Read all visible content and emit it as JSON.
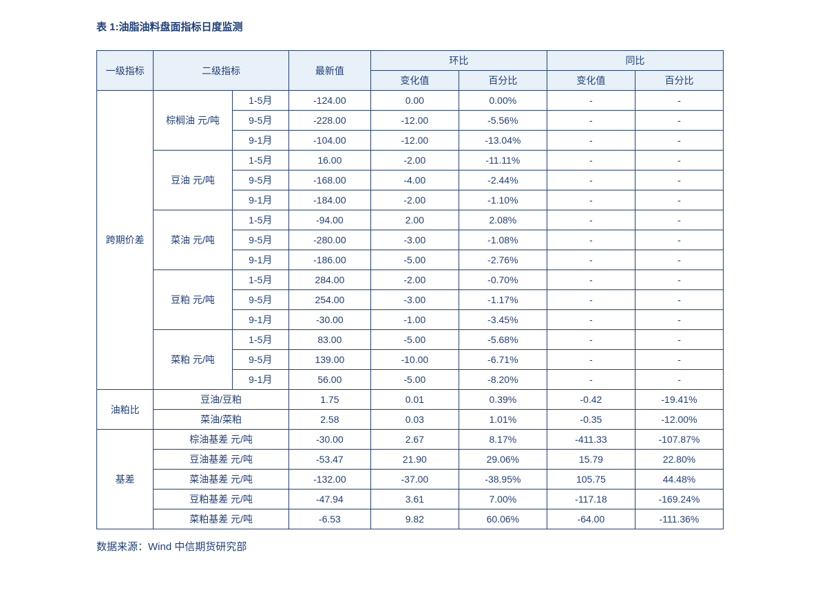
{
  "title": "表 1:油脂油料盘面指标日度监测",
  "source": "数据来源：Wind  中信期货研究部",
  "colors": {
    "primary": "#1f3f7a",
    "header_bg": "#e8f0f8",
    "page_bg": "#ffffff"
  },
  "headers": {
    "l1": "一级指标",
    "l2": "二级指标",
    "latest": "最新值",
    "mom": "环比",
    "yoy": "同比",
    "change_val": "变化值",
    "change_pct": "百分比"
  },
  "groups": [
    {
      "name": "跨期价差",
      "subgroups": [
        {
          "name": "棕榈油 元/吨",
          "rows": [
            {
              "period": "1-5月",
              "latest": "-124.00",
              "mom_v": "0.00",
              "mom_p": "0.00%",
              "yoy_v": "-",
              "yoy_p": "-"
            },
            {
              "period": "9-5月",
              "latest": "-228.00",
              "mom_v": "-12.00",
              "mom_p": "-5.56%",
              "yoy_v": "-",
              "yoy_p": "-"
            },
            {
              "period": "9-1月",
              "latest": "-104.00",
              "mom_v": "-12.00",
              "mom_p": "-13.04%",
              "yoy_v": "-",
              "yoy_p": "-"
            }
          ]
        },
        {
          "name": "豆油  元/吨",
          "rows": [
            {
              "period": "1-5月",
              "latest": "16.00",
              "mom_v": "-2.00",
              "mom_p": "-11.11%",
              "yoy_v": "-",
              "yoy_p": "-"
            },
            {
              "period": "9-5月",
              "latest": "-168.00",
              "mom_v": "-4.00",
              "mom_p": "-2.44%",
              "yoy_v": "-",
              "yoy_p": "-"
            },
            {
              "period": "9-1月",
              "latest": "-184.00",
              "mom_v": "-2.00",
              "mom_p": "-1.10%",
              "yoy_v": "-",
              "yoy_p": "-"
            }
          ]
        },
        {
          "name": "菜油  元/吨",
          "rows": [
            {
              "period": "1-5月",
              "latest": "-94.00",
              "mom_v": "2.00",
              "mom_p": "2.08%",
              "yoy_v": "-",
              "yoy_p": "-"
            },
            {
              "period": "9-5月",
              "latest": "-280.00",
              "mom_v": "-3.00",
              "mom_p": "-1.08%",
              "yoy_v": "-",
              "yoy_p": "-"
            },
            {
              "period": "9-1月",
              "latest": "-186.00",
              "mom_v": "-5.00",
              "mom_p": "-2.76%",
              "yoy_v": "-",
              "yoy_p": "-"
            }
          ]
        },
        {
          "name": "豆粕  元/吨",
          "rows": [
            {
              "period": "1-5月",
              "latest": "284.00",
              "mom_v": "-2.00",
              "mom_p": "-0.70%",
              "yoy_v": "-",
              "yoy_p": "-"
            },
            {
              "period": "9-5月",
              "latest": "254.00",
              "mom_v": "-3.00",
              "mom_p": "-1.17%",
              "yoy_v": "-",
              "yoy_p": "-"
            },
            {
              "period": "9-1月",
              "latest": "-30.00",
              "mom_v": "-1.00",
              "mom_p": "-3.45%",
              "yoy_v": "-",
              "yoy_p": "-"
            }
          ]
        },
        {
          "name": "菜粕  元/吨",
          "rows": [
            {
              "period": "1-5月",
              "latest": "83.00",
              "mom_v": "-5.00",
              "mom_p": "-5.68%",
              "yoy_v": "-",
              "yoy_p": "-"
            },
            {
              "period": "9-5月",
              "latest": "139.00",
              "mom_v": "-10.00",
              "mom_p": "-6.71%",
              "yoy_v": "-",
              "yoy_p": "-"
            },
            {
              "period": "9-1月",
              "latest": "56.00",
              "mom_v": "-5.00",
              "mom_p": "-8.20%",
              "yoy_v": "-",
              "yoy_p": "-"
            }
          ]
        }
      ]
    },
    {
      "name": "油粕比",
      "flat_rows": [
        {
          "name": "豆油/豆粕",
          "latest": "1.75",
          "mom_v": "0.01",
          "mom_p": "0.39%",
          "yoy_v": "-0.42",
          "yoy_p": "-19.41%"
        },
        {
          "name": "菜油/菜粕",
          "latest": "2.58",
          "mom_v": "0.03",
          "mom_p": "1.01%",
          "yoy_v": "-0.35",
          "yoy_p": "-12.00%"
        }
      ]
    },
    {
      "name": "基差",
      "flat_rows": [
        {
          "name": "棕油基差  元/吨",
          "latest": "-30.00",
          "mom_v": "2.67",
          "mom_p": "8.17%",
          "yoy_v": "-411.33",
          "yoy_p": "-107.87%"
        },
        {
          "name": "豆油基差  元/吨",
          "latest": "-53.47",
          "mom_v": "21.90",
          "mom_p": "29.06%",
          "yoy_v": "15.79",
          "yoy_p": "22.80%"
        },
        {
          "name": "菜油基差  元/吨",
          "latest": "-132.00",
          "mom_v": "-37.00",
          "mom_p": "-38.95%",
          "yoy_v": "105.75",
          "yoy_p": "44.48%"
        },
        {
          "name": "豆粕基差  元/吨",
          "latest": "-47.94",
          "mom_v": "3.61",
          "mom_p": "7.00%",
          "yoy_v": "-117.18",
          "yoy_p": "-169.24%"
        },
        {
          "name": "菜粕基差  元/吨",
          "latest": "-6.53",
          "mom_v": "9.82",
          "mom_p": "60.06%",
          "yoy_v": "-64.00",
          "yoy_p": "-111.36%"
        }
      ]
    }
  ]
}
